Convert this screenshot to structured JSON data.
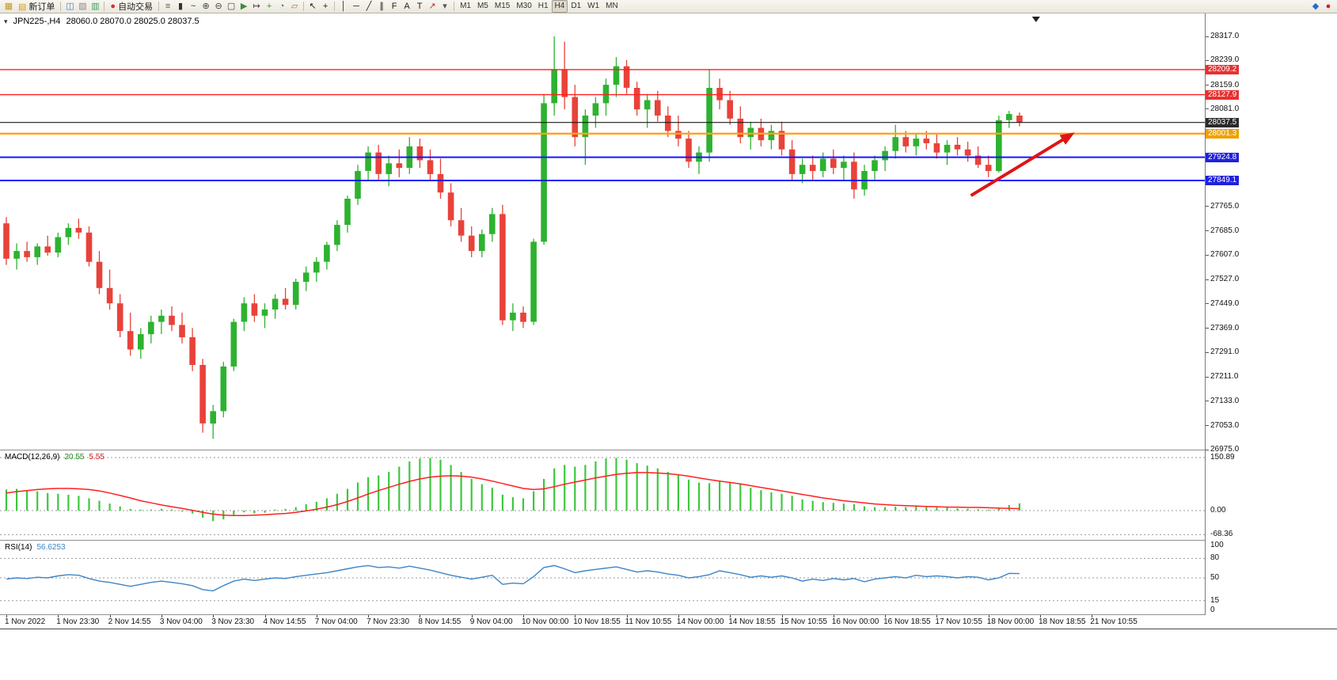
{
  "toolbar": {
    "timeframes": {
      "items": [
        "M1",
        "M5",
        "M15",
        "M30",
        "H1",
        "H4",
        "D1",
        "W1",
        "MN"
      ],
      "active": "H4"
    },
    "groups": [
      {
        "type": "icons",
        "items": [
          {
            "name": "app-icon",
            "glyph": "▦",
            "color": "#c09a28"
          }
        ]
      },
      {
        "type": "button",
        "name": "new-order-button",
        "icon_name": "new-order-icon",
        "icon_glyph": "▤",
        "icon_color": "#d4a017",
        "label": "新订单"
      },
      {
        "type": "sep"
      },
      {
        "type": "icons",
        "items": [
          {
            "name": "chart-window-icon",
            "glyph": "◫",
            "color": "#4a7ac0"
          },
          {
            "name": "profiles-icon",
            "glyph": "▨",
            "color": "#8a8a8a"
          },
          {
            "name": "market-watch-icon",
            "glyph": "▥",
            "color": "#3f9a5f"
          }
        ]
      },
      {
        "type": "sep"
      },
      {
        "type": "button",
        "name": "autotrading-button",
        "icon_name": "autotrading-icon",
        "icon_glyph": "●",
        "icon_color": "#d83030",
        "label": "自动交易"
      },
      {
        "type": "sep"
      },
      {
        "type": "icons",
        "items": [
          {
            "name": "bar-chart-icon",
            "glyph": "≡",
            "color": "#555555"
          },
          {
            "name": "candlestick-chart-icon",
            "glyph": "▮",
            "color": "#333333"
          },
          {
            "name": "line-chart-icon",
            "glyph": "~",
            "color": "#333333"
          },
          {
            "name": "zoom-in-icon",
            "glyph": "⊕",
            "color": "#444444"
          },
          {
            "name": "zoom-out-icon",
            "glyph": "⊖",
            "color": "#444444"
          },
          {
            "name": "tile-windows-icon",
            "glyph": "▢",
            "color": "#444444"
          },
          {
            "name": "auto-scroll-icon",
            "glyph": "▶",
            "color": "#3f8a3f"
          },
          {
            "name": "chart-shift-icon",
            "glyph": "↦",
            "color": "#444444"
          },
          {
            "name": "indicators-icon",
            "glyph": "+",
            "color": "#2a9a2a"
          },
          {
            "name": "periods-icon",
            "glyph": "◔",
            "color": "#446688"
          },
          {
            "name": "templates-icon",
            "glyph": "▱",
            "color": "#b06a30"
          }
        ]
      },
      {
        "type": "sep"
      },
      {
        "type": "icons",
        "items": [
          {
            "name": "cursor-icon",
            "glyph": "↖",
            "color": "#222222"
          },
          {
            "name": "crosshair-icon",
            "glyph": "+",
            "color": "#222222"
          }
        ]
      },
      {
        "type": "sep"
      },
      {
        "type": "icons",
        "items": [
          {
            "name": "vertical-line-icon",
            "glyph": "│",
            "color": "#222222"
          },
          {
            "name": "horizontal-line-icon",
            "glyph": "─",
            "color": "#222222"
          },
          {
            "name": "trendline-icon",
            "glyph": "╱",
            "color": "#222222"
          },
          {
            "name": "channel-icon",
            "glyph": "∥",
            "color": "#222222"
          },
          {
            "name": "fibonacci-icon",
            "glyph": "F",
            "color": "#222222"
          },
          {
            "name": "text-icon",
            "glyph": "A",
            "color": "#222222"
          },
          {
            "name": "label-icon",
            "glyph": "T",
            "color": "#222222"
          },
          {
            "name": "arrows-tool-icon",
            "glyph": "↗",
            "color": "#c03030"
          },
          {
            "name": "arrows-dropdown-icon",
            "glyph": "▾",
            "color": "#555555"
          }
        ]
      },
      {
        "type": "sep"
      },
      {
        "type": "timeframes"
      },
      {
        "type": "spacer"
      },
      {
        "type": "icons",
        "items": [
          {
            "name": "community-icon",
            "glyph": "◆",
            "color": "#2a6ad0"
          },
          {
            "name": "alert-icon",
            "glyph": "●",
            "color": "#d82020"
          }
        ]
      }
    ]
  },
  "chart": {
    "symbol_period": "JPN225-,H4",
    "ohlc_line": "28060.0 28070.0 28025.0 28037.5"
  },
  "chart_data": {
    "type": "candlestick",
    "symbol": "JPN225-",
    "timeframe": "H4",
    "indicators": [
      "MACD(12,26,9)",
      "RSI(14)"
    ],
    "colors": {
      "up": "#2db230",
      "down": "#e8423a"
    },
    "price_axis": {
      "top_price": 28317,
      "bottom_price": 26975,
      "ticks": [
        "28317.0",
        "28239.0",
        "28159.0",
        "28081.0",
        "27765.0",
        "27685.0",
        "27607.0",
        "27527.0",
        "27449.0",
        "27369.0",
        "27291.0",
        "27211.0",
        "27133.0",
        "27053.0",
        "26975.0"
      ]
    },
    "hlines": [
      {
        "label": "28209.2",
        "price": 28209.2,
        "color": "#ff1e1e",
        "width": 1.4,
        "badge": "#e83030"
      },
      {
        "label": "28127.9",
        "price": 28127.9,
        "color": "#ff1e1e",
        "width": 1.4,
        "badge": "#e83030"
      },
      {
        "label": "28037.5",
        "price": 28037.5,
        "color": "#1a1a1a",
        "width": 1.2,
        "badge": "#2a2a2a"
      },
      {
        "label": "28001.3",
        "price": 28001.3,
        "color": "#ffa21e",
        "width": 2.4,
        "badge": "#f0a000"
      },
      {
        "label": "27924.8",
        "price": 27924.8,
        "color": "#1616ff",
        "width": 2.0,
        "badge": "#2020dd"
      },
      {
        "label": "27849.1",
        "price": 27849.1,
        "color": "#1616ff",
        "width": 2.0,
        "badge": "#2020dd"
      }
    ],
    "candles": [
      [
        27710,
        27730,
        27575,
        27595
      ],
      [
        27595,
        27645,
        27560,
        27620
      ],
      [
        27620,
        27650,
        27585,
        27600
      ],
      [
        27600,
        27645,
        27575,
        27635
      ],
      [
        27635,
        27670,
        27605,
        27615
      ],
      [
        27615,
        27680,
        27600,
        27665
      ],
      [
        27665,
        27710,
        27640,
        27695
      ],
      [
        27695,
        27725,
        27660,
        27680
      ],
      [
        27680,
        27700,
        27570,
        27585
      ],
      [
        27585,
        27620,
        27480,
        27500
      ],
      [
        27500,
        27560,
        27430,
        27450
      ],
      [
        27450,
        27480,
        27340,
        27360
      ],
      [
        27360,
        27420,
        27280,
        27300
      ],
      [
        27300,
        27370,
        27270,
        27350
      ],
      [
        27350,
        27410,
        27320,
        27390
      ],
      [
        27390,
        27430,
        27350,
        27410
      ],
      [
        27410,
        27440,
        27360,
        27380
      ],
      [
        27380,
        27420,
        27320,
        27340
      ],
      [
        27340,
        27370,
        27230,
        27250
      ],
      [
        27250,
        27270,
        27030,
        27060
      ],
      [
        27060,
        27120,
        27010,
        27100
      ],
      [
        27100,
        27260,
        27080,
        27245
      ],
      [
        27245,
        27400,
        27230,
        27390
      ],
      [
        27390,
        27470,
        27360,
        27450
      ],
      [
        27450,
        27480,
        27390,
        27410
      ],
      [
        27410,
        27450,
        27370,
        27430
      ],
      [
        27430,
        27480,
        27400,
        27465
      ],
      [
        27465,
        27500,
        27430,
        27445
      ],
      [
        27445,
        27530,
        27430,
        27520
      ],
      [
        27520,
        27570,
        27490,
        27550
      ],
      [
        27550,
        27600,
        27520,
        27585
      ],
      [
        27585,
        27650,
        27560,
        27640
      ],
      [
        27640,
        27720,
        27620,
        27705
      ],
      [
        27705,
        27800,
        27680,
        27790
      ],
      [
        27790,
        27900,
        27770,
        27880
      ],
      [
        27880,
        27960,
        27850,
        27940
      ],
      [
        27940,
        27965,
        27850,
        27870
      ],
      [
        27870,
        27930,
        27830,
        27905
      ],
      [
        27905,
        27950,
        27860,
        27890
      ],
      [
        27890,
        27990,
        27870,
        27960
      ],
      [
        27960,
        27985,
        27890,
        27915
      ],
      [
        27915,
        27950,
        27850,
        27870
      ],
      [
        27870,
        27920,
        27790,
        27810
      ],
      [
        27810,
        27840,
        27700,
        27720
      ],
      [
        27720,
        27760,
        27650,
        27670
      ],
      [
        27670,
        27700,
        27600,
        27620
      ],
      [
        27620,
        27690,
        27600,
        27675
      ],
      [
        27675,
        27760,
        27650,
        27740
      ],
      [
        27740,
        27770,
        27380,
        27395
      ],
      [
        27395,
        27450,
        27360,
        27420
      ],
      [
        27420,
        27440,
        27370,
        27390
      ],
      [
        27390,
        27660,
        27380,
        27650
      ],
      [
        27650,
        28130,
        27640,
        28100
      ],
      [
        28100,
        28317,
        28060,
        28210
      ],
      [
        28210,
        28300,
        28080,
        28120
      ],
      [
        28120,
        28160,
        27960,
        27990
      ],
      [
        27990,
        28080,
        27900,
        28060
      ],
      [
        28060,
        28120,
        28020,
        28100
      ],
      [
        28100,
        28180,
        28060,
        28160
      ],
      [
        28160,
        28250,
        28120,
        28220
      ],
      [
        28220,
        28240,
        28130,
        28150
      ],
      [
        28150,
        28170,
        28060,
        28080
      ],
      [
        28080,
        28130,
        28020,
        28110
      ],
      [
        28110,
        28140,
        28040,
        28060
      ],
      [
        28060,
        28090,
        27990,
        28010
      ],
      [
        28010,
        28060,
        27960,
        27985
      ],
      [
        27985,
        28010,
        27890,
        27910
      ],
      [
        27910,
        27960,
        27870,
        27940
      ],
      [
        27940,
        28210,
        27910,
        28150
      ],
      [
        28150,
        28180,
        28080,
        28110
      ],
      [
        28110,
        28140,
        28030,
        28050
      ],
      [
        28050,
        28090,
        27970,
        27990
      ],
      [
        27990,
        28040,
        27950,
        28020
      ],
      [
        28020,
        28050,
        27960,
        27980
      ],
      [
        27980,
        28030,
        27950,
        28010
      ],
      [
        28010,
        28040,
        27930,
        27950
      ],
      [
        27950,
        27980,
        27850,
        27870
      ],
      [
        27870,
        27920,
        27840,
        27900
      ],
      [
        27900,
        27930,
        27850,
        27880
      ],
      [
        27880,
        27940,
        27860,
        27920
      ],
      [
        27920,
        27950,
        27870,
        27890
      ],
      [
        27890,
        27930,
        27850,
        27910
      ],
      [
        27910,
        27940,
        27790,
        27820
      ],
      [
        27820,
        27900,
        27800,
        27880
      ],
      [
        27880,
        27930,
        27850,
        27915
      ],
      [
        27915,
        27960,
        27880,
        27945
      ],
      [
        27945,
        28030,
        27920,
        27990
      ],
      [
        27990,
        28010,
        27940,
        27960
      ],
      [
        27960,
        28000,
        27930,
        27985
      ],
      [
        27985,
        28010,
        27950,
        27970
      ],
      [
        27970,
        28000,
        27920,
        27940
      ],
      [
        27940,
        27980,
        27900,
        27965
      ],
      [
        27965,
        27990,
        27930,
        27950
      ],
      [
        27950,
        27975,
        27910,
        27930
      ],
      [
        27930,
        27960,
        27890,
        27900
      ],
      [
        27900,
        27930,
        27860,
        27880
      ],
      [
        27880,
        28060,
        27875,
        28045
      ],
      [
        28045,
        28075,
        28020,
        28065
      ],
      [
        28060,
        28070,
        28025,
        28037.5
      ]
    ],
    "macd": {
      "label": "MACD(12,26,9)",
      "value_main": "20.55",
      "value_signal": "5.55",
      "axis_labels": [
        "150.89",
        "0.00",
        "-68.36"
      ],
      "axis_values": [
        150.89,
        0,
        -68.36
      ],
      "hist_color": "#3cc83c",
      "signal_color": "#ff2020",
      "hist": [
        60,
        62,
        58,
        55,
        50,
        48,
        45,
        42,
        35,
        28,
        20,
        12,
        5,
        2,
        3,
        5,
        3,
        -2,
        -8,
        -20,
        -30,
        -25,
        -12,
        -5,
        -8,
        -6,
        2,
        5,
        10,
        18,
        25,
        35,
        48,
        62,
        80,
        95,
        100,
        110,
        125,
        140,
        148,
        150,
        145,
        130,
        110,
        90,
        75,
        65,
        45,
        38,
        35,
        55,
        90,
        120,
        130,
        125,
        130,
        140,
        148,
        150,
        145,
        135,
        128,
        120,
        110,
        100,
        88,
        80,
        78,
        85,
        82,
        75,
        65,
        58,
        52,
        48,
        42,
        32,
        28,
        24,
        22,
        20,
        18,
        12,
        10,
        10,
        11,
        10,
        12,
        10,
        9,
        8,
        6,
        5,
        4,
        2,
        8,
        16,
        20.55
      ],
      "signal": [
        50,
        54,
        57,
        60,
        62,
        63,
        63,
        62,
        60,
        56,
        50,
        43,
        36,
        28,
        22,
        16,
        11,
        6,
        1,
        -5,
        -10,
        -13,
        -14,
        -14,
        -13,
        -12,
        -10,
        -8,
        -5,
        -1,
        4,
        10,
        17,
        26,
        36,
        47,
        57,
        66,
        75,
        83,
        90,
        95,
        98,
        99,
        98,
        95,
        90,
        84,
        77,
        70,
        63,
        60,
        62,
        68,
        75,
        81,
        87,
        93,
        98,
        103,
        106,
        108,
        108,
        107,
        105,
        102,
        98,
        93,
        88,
        84,
        80,
        76,
        71,
        66,
        61,
        56,
        51,
        46,
        41,
        36,
        32,
        28,
        25,
        22,
        19,
        17,
        15,
        14,
        13,
        12,
        11,
        10,
        10,
        9,
        9,
        8,
        7,
        6,
        5.55
      ]
    },
    "rsi": {
      "label": "RSI(14)",
      "value": "56.6253",
      "axis_labels": [
        "100",
        "80",
        "50",
        "15",
        "0"
      ],
      "axis_values": [
        100,
        80,
        50,
        15,
        0
      ],
      "levels": [
        80,
        50,
        15
      ],
      "range": [
        0,
        100
      ],
      "line_color": "#3d85c8",
      "values": [
        48,
        50,
        49,
        51,
        50,
        53,
        55,
        54,
        49,
        45,
        43,
        40,
        37,
        40,
        43,
        45,
        43,
        41,
        38,
        32,
        30,
        38,
        45,
        48,
        46,
        48,
        50,
        49,
        52,
        54,
        56,
        58,
        61,
        64,
        67,
        69,
        66,
        67,
        65,
        68,
        65,
        62,
        58,
        54,
        51,
        48,
        51,
        54,
        40,
        42,
        41,
        52,
        66,
        69,
        64,
        58,
        61,
        63,
        65,
        67,
        63,
        59,
        61,
        59,
        56,
        54,
        50,
        52,
        55,
        61,
        58,
        55,
        51,
        53,
        51,
        53,
        50,
        45,
        48,
        46,
        49,
        47,
        49,
        44,
        48,
        50,
        52,
        50,
        54,
        52,
        53,
        52,
        50,
        52,
        51,
        47,
        50,
        57,
        56.63
      ]
    },
    "time_labels": [
      "1 Nov 2022",
      "1 Nov 23:30",
      "2 Nov 14:55",
      "3 Nov 04:00",
      "3 Nov 23:30",
      "4 Nov 14:55",
      "7 Nov 04:00",
      "7 Nov 23:30",
      "8 Nov 14:55",
      "9 Nov 04:00",
      "10 Nov 00:00",
      "10 Nov 18:55",
      "11 Nov 10:55",
      "14 Nov 00:00",
      "14 Nov 18:55",
      "15 Nov 10:55",
      "16 Nov 00:00",
      "16 Nov 18:55",
      "17 Nov 10:55",
      "18 Nov 00:00",
      "18 Nov 18:55",
      "21 Nov 10:55"
    ],
    "arrow": {
      "from_bar": 93.3,
      "from_price": 27800,
      "to_bar": 103.0,
      "to_price": 27998,
      "color": "#e01414"
    },
    "shift_marker_bar": 99.6
  }
}
